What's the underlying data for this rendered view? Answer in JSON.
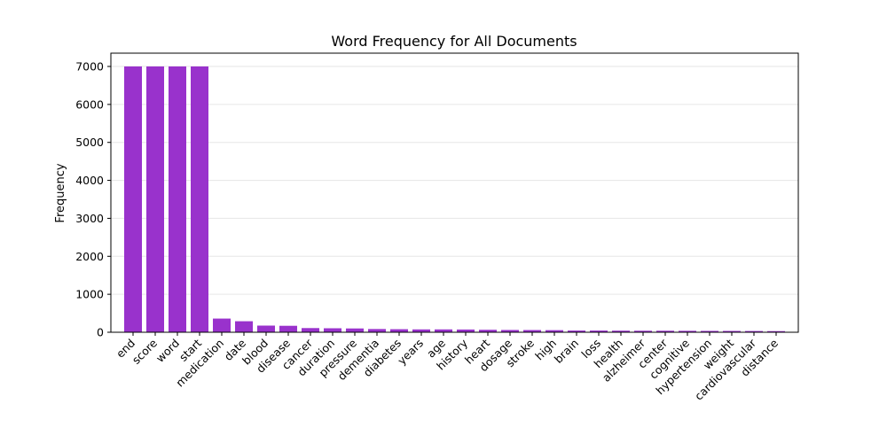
{
  "chart_data": {
    "type": "bar",
    "title": "Word Frequency for All Documents",
    "xlabel": "",
    "ylabel": "Frequency",
    "ylim": [
      0,
      7350
    ],
    "yticks": [
      0,
      1000,
      2000,
      3000,
      4000,
      5000,
      6000,
      7000
    ],
    "grid": "horizontal, light",
    "legend": "none",
    "bar_color": "#9932CC",
    "categories": [
      "end",
      "score",
      "word",
      "start",
      "medication",
      "date",
      "blood",
      "disease",
      "cancer",
      "duration",
      "pressure",
      "dementia",
      "diabetes",
      "years",
      "age",
      "history",
      "heart",
      "dosage",
      "stroke",
      "high",
      "brain",
      "loss",
      "health",
      "alzheimer",
      "center",
      "cognitive",
      "hypertension",
      "weight",
      "cardiovascular",
      "distance"
    ],
    "values": [
      7000,
      7000,
      7000,
      7000,
      360,
      290,
      175,
      170,
      110,
      105,
      100,
      85,
      80,
      75,
      75,
      72,
      65,
      60,
      58,
      55,
      45,
      45,
      42,
      40,
      40,
      38,
      36,
      35,
      33,
      30
    ]
  }
}
